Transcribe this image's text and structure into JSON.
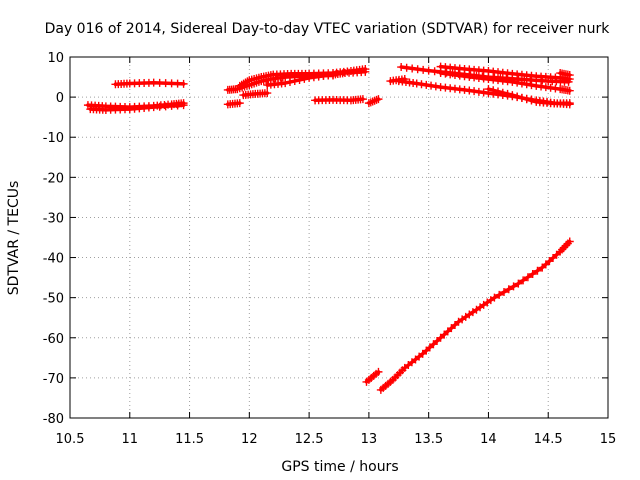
{
  "chart_data": {
    "type": "scatter",
    "title": "Day 016 of 2014, Sidereal Day-to-day VTEC variation (SDTVAR) for receiver nurk",
    "xlabel": "GPS time / hours",
    "ylabel": "SDTVAR / TECUs",
    "xlim": [
      10.5,
      15
    ],
    "ylim": [
      -80,
      10
    ],
    "xticks": [
      "10.5",
      "11",
      "11.5",
      "12",
      "12.5",
      "13",
      "13.5",
      "14",
      "14.5",
      "15"
    ],
    "yticks": [
      "10",
      "0",
      "-10",
      "-20",
      "-30",
      "-40",
      "-50",
      "-60",
      "-70",
      "-80"
    ],
    "grid": true,
    "color": "#ff0000",
    "series": [
      {
        "x": [
          10.65,
          10.8,
          11.0,
          11.2,
          11.35,
          11.45
        ],
        "y": [
          -2.0,
          -2.3,
          -2.5,
          -2.2,
          -1.8,
          -1.5
        ]
      },
      {
        "x": [
          10.67,
          10.8,
          11.0,
          11.2,
          11.45
        ],
        "y": [
          -3.0,
          -3.2,
          -3.0,
          -2.5,
          -2.0
        ]
      },
      {
        "x": [
          10.88,
          11.0,
          11.2,
          11.45
        ],
        "y": [
          3.2,
          3.4,
          3.6,
          3.3
        ]
      },
      {
        "x": [
          11.82,
          11.92
        ],
        "y": [
          -1.8,
          -1.5
        ]
      },
      {
        "x": [
          11.82,
          11.9,
          12.0,
          12.1,
          12.2,
          12.3,
          12.5,
          12.7
        ],
        "y": [
          1.8,
          2.0,
          3.0,
          4.0,
          4.6,
          5.0,
          5.3,
          5.4
        ]
      },
      {
        "x": [
          11.92,
          12.0,
          12.1,
          12.2,
          12.35,
          12.5,
          12.7,
          12.85,
          12.97
        ],
        "y": [
          2.8,
          4.2,
          5.0,
          5.6,
          5.8,
          5.8,
          6.0,
          6.5,
          7.0
        ]
      },
      {
        "x": [
          11.95,
          12.05,
          12.15
        ],
        "y": [
          0.5,
          0.8,
          1.0
        ]
      },
      {
        "x": [
          12.15,
          12.3,
          12.5,
          12.7,
          12.8,
          12.97
        ],
        "y": [
          3.0,
          3.5,
          4.8,
          5.6,
          6.0,
          6.3
        ]
      },
      {
        "x": [
          12.55,
          12.7,
          12.85,
          12.95
        ],
        "y": [
          -0.8,
          -0.7,
          -0.8,
          -0.5
        ]
      },
      {
        "x": [
          13.0,
          13.08
        ],
        "y": [
          -1.5,
          -0.5
        ]
      },
      {
        "x": [
          13.18,
          13.3
        ],
        "y": [
          4.0,
          4.5
        ]
      },
      {
        "x": [
          13.27,
          13.5,
          13.75,
          14.0,
          14.25,
          14.5,
          14.67
        ],
        "y": [
          7.5,
          6.6,
          5.8,
          5.0,
          4.5,
          4.0,
          3.8
        ]
      },
      {
        "x": [
          13.6,
          13.8,
          14.0,
          14.2,
          14.4,
          14.6,
          14.68
        ],
        "y": [
          7.6,
          7.0,
          6.5,
          5.8,
          5.2,
          4.8,
          4.5
        ]
      },
      {
        "x": [
          13.25,
          13.4,
          13.6,
          13.8,
          14.0,
          14.2,
          14.4,
          14.55,
          14.68
        ],
        "y": [
          4.0,
          3.4,
          2.5,
          1.8,
          1.0,
          0.2,
          -0.8,
          -1.5,
          -1.8
        ]
      },
      {
        "x": [
          13.6,
          13.8,
          14.0,
          14.2,
          14.4,
          14.6,
          14.68
        ],
        "y": [
          6.0,
          5.2,
          4.5,
          3.8,
          2.8,
          2.0,
          1.6
        ]
      },
      {
        "x": [
          14.0,
          14.2,
          14.4,
          14.55,
          14.68
        ],
        "y": [
          2.0,
          0.5,
          -1.2,
          -1.6,
          -1.5
        ]
      },
      {
        "x": [
          14.6,
          14.68
        ],
        "y": [
          6.0,
          5.5
        ]
      },
      {
        "x": [
          12.98,
          13.08
        ],
        "y": [
          -71.0,
          -68.5
        ]
      },
      {
        "x": [
          13.1,
          13.2,
          13.3,
          13.45,
          13.6,
          13.75,
          13.9,
          14.05,
          14.25,
          14.45,
          14.6,
          14.68
        ],
        "y": [
          -73.0,
          -70.5,
          -67.5,
          -64.0,
          -60.0,
          -56.0,
          -53.0,
          -50.0,
          -46.5,
          -42.5,
          -38.5,
          -36.0
        ]
      }
    ]
  }
}
